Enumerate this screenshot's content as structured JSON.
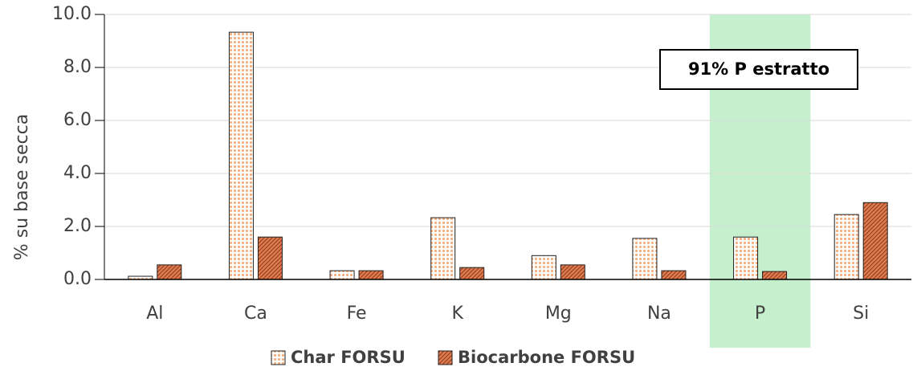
{
  "chart_data": {
    "type": "bar",
    "y_label": "% su base secca",
    "categories": [
      "Al",
      "Ca",
      "Fe",
      "K",
      "Mg",
      "Na",
      "P",
      "Si"
    ],
    "series": [
      {
        "name": "Char FORSU",
        "color": "#f4b183",
        "pattern": "dots",
        "values": [
          0.12,
          9.33,
          0.33,
          2.33,
          0.9,
          1.55,
          1.6,
          2.45
        ]
      },
      {
        "name": "Biocarbone FORSU",
        "color": "#e07b50",
        "pattern": "hatch",
        "values": [
          0.55,
          1.6,
          0.33,
          0.45,
          0.55,
          0.33,
          0.3,
          2.9
        ]
      }
    ],
    "ylim": [
      0,
      10
    ],
    "yticks": [
      {
        "value": 0,
        "label": "0.0"
      },
      {
        "value": 2,
        "label": "2.0"
      },
      {
        "value": 4,
        "label": "4.0"
      },
      {
        "value": 6,
        "label": "6.0"
      },
      {
        "value": 8,
        "label": "8.0"
      },
      {
        "value": 10,
        "label": "10.0"
      }
    ],
    "grid": true,
    "highlight": {
      "category": 6,
      "color": "#c6efce"
    },
    "annotation": "91% P estratto",
    "legend": "bottom"
  }
}
